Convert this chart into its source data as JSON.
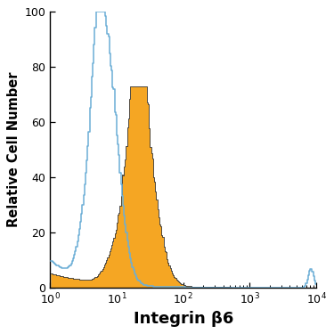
{
  "title": "",
  "xlabel": "Integrin β6",
  "ylabel": "Relative Cell Number",
  "xlim_log": [
    0,
    4
  ],
  "ylim": [
    0,
    100
  ],
  "yticks": [
    0,
    20,
    40,
    60,
    80,
    100
  ],
  "blue_color": "#6baed6",
  "orange_color": "#f5a623",
  "orange_edge_color": "#333333",
  "background_color": "#ffffff"
}
